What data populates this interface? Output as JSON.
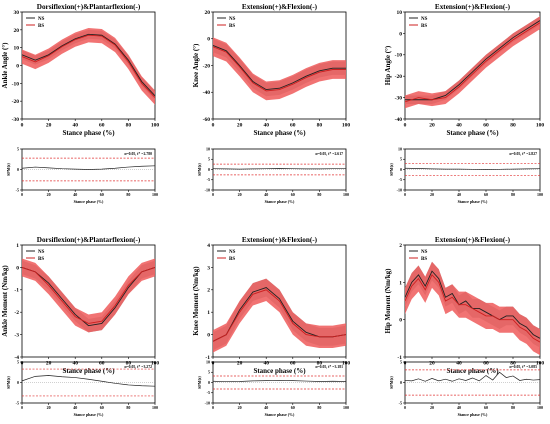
{
  "figure": {
    "colors": {
      "ns_line": "#222222",
      "ns_band": "#a8a8a8",
      "bs_line": "#cc1f1f",
      "bs_band": "#ee5a5a",
      "threshold": "#e03030",
      "axis": "#000000"
    }
  },
  "chart_data": [
    {
      "type": "line",
      "title": "Dorsiflexion(+)&Plantarflexion(-)",
      "xlabel": "Stance phase (%)",
      "ylabel": "Ankle Angle (°)",
      "xlim": [
        0,
        100
      ],
      "ylim": [
        -30,
        30
      ],
      "xticks": [
        0,
        20,
        40,
        60,
        80,
        100
      ],
      "yticks": [
        -30,
        -20,
        -10,
        0,
        10,
        20,
        30
      ],
      "legend": "top-left",
      "x": [
        0,
        10,
        20,
        30,
        40,
        50,
        60,
        70,
        80,
        90,
        100
      ],
      "series": [
        {
          "name": "NS",
          "mean": [
            6,
            3,
            6,
            11,
            15,
            17.5,
            17,
            12,
            3,
            -9,
            -17
          ],
          "sd": 2.5
        },
        {
          "name": "BS",
          "mean": [
            5,
            2,
            5.5,
            10.5,
            14.5,
            17,
            16.5,
            11.5,
            2,
            -10,
            -18
          ],
          "sd": 4
        }
      ]
    },
    {
      "type": "line",
      "title": "Extension(+)&Flexion(-)",
      "xlabel": "Stance phase (%)",
      "ylabel": "Knee Angle (°)",
      "xlim": [
        0,
        100
      ],
      "ylim": [
        -60,
        20
      ],
      "xticks": [
        0,
        20,
        40,
        60,
        80,
        100
      ],
      "yticks": [
        -60,
        -40,
        -20,
        0,
        20
      ],
      "legend": "top-left",
      "x": [
        0,
        10,
        20,
        30,
        40,
        50,
        60,
        70,
        80,
        90,
        100
      ],
      "series": [
        {
          "name": "NS",
          "mean": [
            -5,
            -9,
            -20,
            -32,
            -38,
            -37,
            -33,
            -28,
            -24,
            -22,
            -22
          ],
          "sd": 5
        },
        {
          "name": "BS",
          "mean": [
            -6,
            -10,
            -21,
            -33,
            -39,
            -38,
            -34,
            -29,
            -25,
            -23,
            -23
          ],
          "sd": 7
        }
      ]
    },
    {
      "type": "line",
      "title": "Extension(+)&Flexion(-)",
      "xlabel": "Stance phase (%)",
      "ylabel": "Hip Angle (°)",
      "xlim": [
        0,
        100
      ],
      "ylim": [
        -40,
        10
      ],
      "xticks": [
        0,
        20,
        40,
        60,
        80,
        100
      ],
      "yticks": [
        -40,
        -30,
        -20,
        -10,
        0,
        10
      ],
      "legend": "top-left",
      "x": [
        0,
        10,
        20,
        30,
        40,
        50,
        60,
        70,
        80,
        90,
        100
      ],
      "series": [
        {
          "name": "NS",
          "mean": [
            -31,
            -31,
            -31,
            -29,
            -24,
            -18,
            -12,
            -7,
            -2,
            2,
            6
          ],
          "sd": 2
        },
        {
          "name": "BS",
          "mean": [
            -32,
            -30,
            -31,
            -30,
            -25,
            -19,
            -13,
            -8,
            -3,
            1,
            5
          ],
          "sd": 3
        }
      ]
    },
    {
      "type": "line",
      "title": "",
      "xlabel": "Stance phase (%)",
      "ylabel": "SPM{t}",
      "annotation": "α=0.05,  t* =2.780",
      "xlim": [
        0,
        100
      ],
      "ylim": [
        -5,
        5
      ],
      "xticks": [
        0,
        20,
        40,
        60,
        80,
        100
      ],
      "yticks": [
        -5,
        0,
        5
      ],
      "threshold": 2.78,
      "x": [
        0,
        10,
        20,
        30,
        40,
        50,
        60,
        70,
        80,
        90,
        100
      ],
      "series": [
        {
          "values": [
            0.3,
            0.6,
            0.4,
            0.2,
            0.1,
            0,
            0.1,
            0.3,
            0.6,
            0.8,
            0.9
          ]
        }
      ]
    },
    {
      "type": "line",
      "title": "",
      "xlabel": "Stance phase (%)",
      "ylabel": "SPM{t}",
      "annotation": "α=0.05,  t* =2.617",
      "xlim": [
        0,
        100
      ],
      "ylim": [
        -10,
        10
      ],
      "xticks": [
        0,
        20,
        40,
        60,
        80,
        100
      ],
      "yticks": [
        -10,
        -5,
        0,
        5,
        10
      ],
      "threshold": 2.617,
      "x": [
        0,
        10,
        20,
        30,
        40,
        50,
        60,
        70,
        80,
        90,
        100
      ],
      "series": [
        {
          "values": [
            0.4,
            0.3,
            0.2,
            0.3,
            0.4,
            0.5,
            0.4,
            0.3,
            0.3,
            0.4,
            0.4
          ]
        }
      ]
    },
    {
      "type": "line",
      "title": "",
      "xlabel": "Stance phase (%)",
      "ylabel": "SPM{t}",
      "annotation": "α=0.05,  t* =2.827",
      "xlim": [
        0,
        100
      ],
      "ylim": [
        -10,
        10
      ],
      "xticks": [
        0,
        20,
        40,
        60,
        80,
        100
      ],
      "yticks": [
        -10,
        -5,
        0,
        5,
        10
      ],
      "threshold": 2.827,
      "x": [
        0,
        10,
        20,
        30,
        40,
        50,
        60,
        70,
        80,
        90,
        100
      ],
      "series": [
        {
          "values": [
            0.6,
            0.5,
            0.3,
            0.2,
            0.2,
            0.1,
            0,
            0.1,
            0.2,
            0.3,
            0.4
          ]
        }
      ]
    },
    {
      "type": "line",
      "title": "Dorsiflexion(+)&Plantarflexion(-)",
      "xlabel": "Stance phase (%)",
      "ylabel": "Ankle Moment (Nm/kg)",
      "xlim": [
        0,
        100
      ],
      "ylim": [
        -4,
        1
      ],
      "xticks": [
        0,
        20,
        40,
        60,
        80,
        100
      ],
      "yticks": [
        -4,
        -3,
        -2,
        -1,
        0,
        1
      ],
      "legend": "top-left",
      "x": [
        0,
        10,
        20,
        30,
        40,
        50,
        60,
        70,
        80,
        90,
        100
      ],
      "series": [
        {
          "name": "NS",
          "mean": [
            0,
            -0.2,
            -0.7,
            -1.4,
            -2.1,
            -2.6,
            -2.5,
            -1.8,
            -0.9,
            -0.2,
            0
          ],
          "sd": 0.3
        },
        {
          "name": "BS",
          "mean": [
            0,
            -0.2,
            -0.8,
            -1.5,
            -2.2,
            -2.5,
            -2.4,
            -1.7,
            -0.8,
            -0.2,
            0
          ],
          "sd": 0.4
        }
      ]
    },
    {
      "type": "line",
      "title": "Extension(+)&Flexion(-)",
      "xlabel": "Stance phase (%)",
      "ylabel": "Knee Moment (Nm/kg)",
      "xlim": [
        0,
        100
      ],
      "ylim": [
        -1,
        4
      ],
      "xticks": [
        0,
        20,
        40,
        60,
        80,
        100
      ],
      "yticks": [
        -1,
        0,
        1,
        2,
        3,
        4
      ],
      "legend": "top-left",
      "x": [
        0,
        10,
        20,
        30,
        40,
        50,
        60,
        70,
        80,
        90,
        100
      ],
      "series": [
        {
          "name": "NS",
          "mean": [
            -0.3,
            0,
            1.1,
            1.9,
            2.1,
            1.6,
            0.6,
            0.1,
            -0.1,
            -0.1,
            0
          ],
          "sd": 0.4
        },
        {
          "name": "BS",
          "mean": [
            -0.3,
            0,
            1,
            1.8,
            2,
            1.5,
            0.5,
            0,
            -0.1,
            -0.1,
            0
          ],
          "sd": 0.5
        }
      ]
    },
    {
      "type": "line",
      "title": "Extension(+)&Flexion(-)",
      "xlabel": "Stance phase (%)",
      "ylabel": "Hip Moment (Nm/kg)",
      "xlim": [
        0,
        100
      ],
      "ylim": [
        -1,
        2
      ],
      "xticks": [
        0,
        20,
        40,
        60,
        80,
        100
      ],
      "yticks": [
        -1,
        0,
        1,
        2
      ],
      "legend": "top-left",
      "x": [
        0,
        5,
        10,
        15,
        20,
        25,
        30,
        35,
        40,
        45,
        50,
        55,
        60,
        65,
        70,
        75,
        80,
        85,
        90,
        95,
        100
      ],
      "series": [
        {
          "name": "NS",
          "mean": [
            0.6,
            1,
            1.2,
            0.9,
            1.3,
            1.1,
            0.6,
            0.7,
            0.4,
            0.5,
            0.3,
            0.3,
            0.2,
            0.1,
            0,
            0.1,
            0.1,
            -0.1,
            -0.2,
            -0.4,
            -0.5
          ],
          "sd": 0.25
        },
        {
          "name": "BS",
          "mean": [
            0.5,
            0.9,
            1.1,
            0.8,
            1.2,
            1,
            0.5,
            0.6,
            0.4,
            0.4,
            0.3,
            0.2,
            0.1,
            0.1,
            0,
            0,
            0,
            -0.2,
            -0.3,
            -0.5,
            -0.6
          ],
          "sd": 0.35
        }
      ]
    },
    {
      "type": "line",
      "title": "",
      "xlabel": "Stance phase (%)",
      "ylabel": "SPM{t}",
      "annotation": "α=0.05,  t* =3.272",
      "xlim": [
        0,
        100
      ],
      "ylim": [
        -5,
        5
      ],
      "xticks": [
        0,
        20,
        40,
        60,
        80,
        100
      ],
      "yticks": [
        -5,
        0,
        5
      ],
      "threshold": 3.272,
      "x": [
        0,
        10,
        20,
        30,
        40,
        50,
        60,
        70,
        80,
        90,
        100
      ],
      "series": [
        {
          "values": [
            0.4,
            1.5,
            1.7,
            1.4,
            1.2,
            0.8,
            0.3,
            -0.2,
            -0.6,
            -0.8,
            -0.9
          ]
        }
      ]
    },
    {
      "type": "line",
      "title": "",
      "xlabel": "Stance phase (%)",
      "ylabel": "SPM{t}",
      "annotation": "α=0.05,  t* =3.181",
      "xlim": [
        0,
        100
      ],
      "ylim": [
        -10,
        10
      ],
      "xticks": [
        0,
        20,
        40,
        60,
        80,
        100
      ],
      "yticks": [
        -10,
        -5,
        0,
        5,
        10
      ],
      "threshold": 3.181,
      "x": [
        0,
        10,
        20,
        30,
        40,
        50,
        60,
        70,
        80,
        90,
        100
      ],
      "series": [
        {
          "values": [
            0.6,
            0.4,
            0.5,
            0.8,
            0.9,
            1,
            0.9,
            0.7,
            0.5,
            0.6,
            0.5
          ]
        }
      ]
    },
    {
      "type": "line",
      "title": "",
      "xlabel": "Stance phase (%)",
      "ylabel": "SPM{t}",
      "annotation": "α=0.05,  t* =3.085",
      "xlim": [
        0,
        100
      ],
      "ylim": [
        -5,
        5
      ],
      "xticks": [
        0,
        20,
        40,
        60,
        80,
        100
      ],
      "yticks": [
        -5,
        0,
        5
      ],
      "threshold": 3.085,
      "x": [
        0,
        5,
        10,
        15,
        20,
        25,
        30,
        35,
        40,
        45,
        50,
        55,
        60,
        65,
        70,
        75,
        80,
        85,
        90,
        95,
        100
      ],
      "series": [
        {
          "values": [
            0.5,
            0.4,
            0.9,
            0.3,
            1,
            0.4,
            0.8,
            0.3,
            0.9,
            0.5,
            1.1,
            0.4,
            1.7,
            0.6,
            2.5,
            1.2,
            1.6,
            0.5,
            0.8,
            0.6,
            0.7
          ]
        }
      ]
    }
  ]
}
